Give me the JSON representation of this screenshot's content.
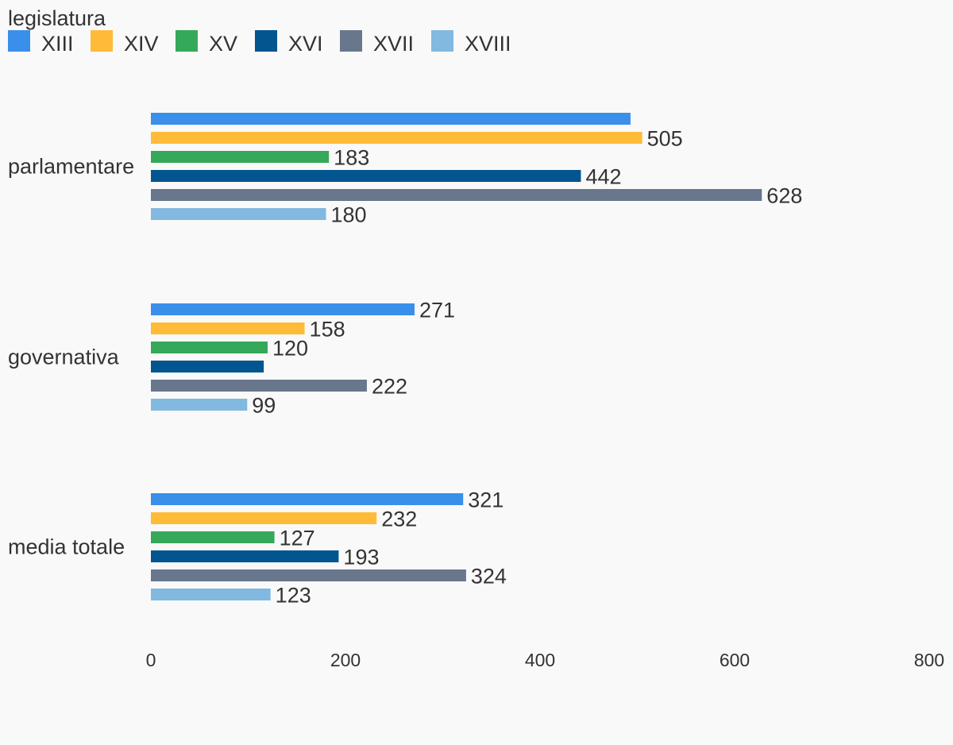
{
  "chart_data": {
    "type": "bar",
    "orientation": "horizontal",
    "legend_title": "legislatura",
    "legend_position": "top-left",
    "categories": [
      "parlamentare",
      "governativa",
      "media totale"
    ],
    "series": [
      {
        "name": "XIII",
        "color": "#3a8fea",
        "values": [
          493,
          271,
          321
        ],
        "labels": [
          "",
          "271",
          "321"
        ]
      },
      {
        "name": "XIV",
        "color": "#ffbb38",
        "values": [
          505,
          158,
          232
        ],
        "labels": [
          "505",
          "158",
          "232"
        ]
      },
      {
        "name": "XV",
        "color": "#35a85a",
        "values": [
          183,
          120,
          127
        ],
        "labels": [
          "183",
          "120",
          "127"
        ]
      },
      {
        "name": "XVI",
        "color": "#02558f",
        "values": [
          442,
          116,
          193
        ],
        "labels": [
          "442",
          "",
          "193"
        ]
      },
      {
        "name": "XVII",
        "color": "#69778c",
        "values": [
          628,
          222,
          324
        ],
        "labels": [
          "628",
          "222",
          "324"
        ]
      },
      {
        "name": "XVIII",
        "color": "#81b9e0",
        "values": [
          180,
          99,
          123
        ],
        "labels": [
          "180",
          "99",
          "123"
        ]
      }
    ],
    "xlim": [
      0,
      800
    ],
    "xticks": [
      "0",
      "200",
      "400",
      "600",
      "800"
    ],
    "grid": false
  }
}
